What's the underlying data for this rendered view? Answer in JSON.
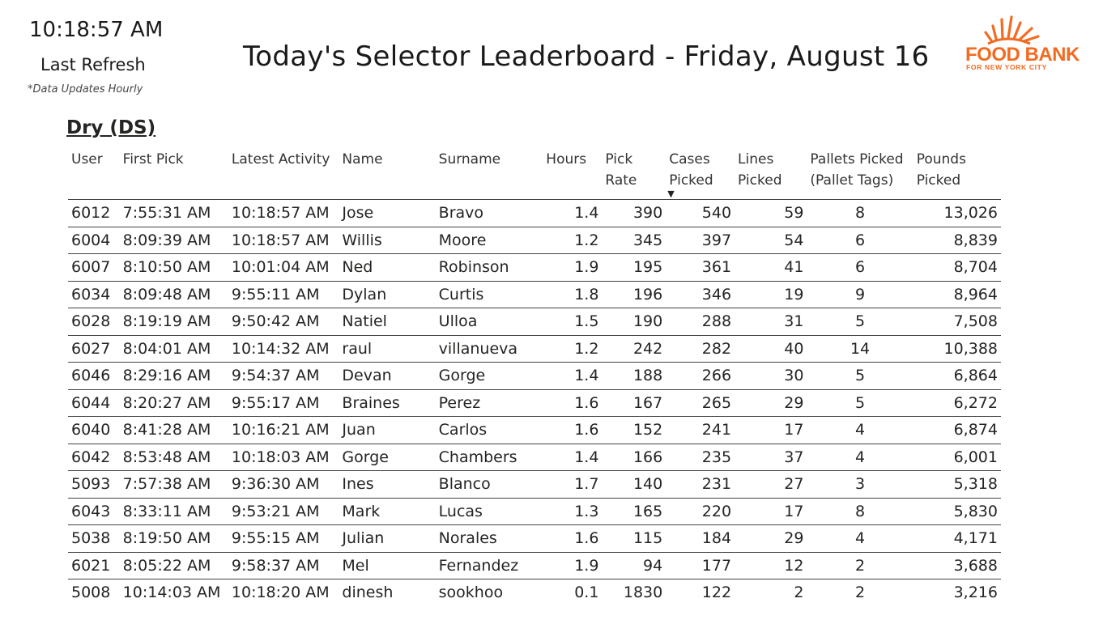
{
  "refresh": {
    "time": "10:18:57 AM",
    "label": "Last Refresh",
    "note": "*Data Updates Hourly"
  },
  "title": "Today's Selector Leaderboard - Friday, August 16",
  "logo": {
    "name": "FOOD BANK",
    "subtitle": "FOR NEW YORK CITY",
    "color": "#f26b21"
  },
  "section": {
    "title": "Dry (DS)"
  },
  "table": {
    "headers": {
      "user": "User",
      "first_pick": "First Pick",
      "latest_activity": "Latest Activity",
      "name": "Name",
      "surname": "Surname",
      "hours": "Hours",
      "pick_rate_1": "Pick",
      "pick_rate_2": "Rate",
      "cases_1": "Cases",
      "cases_2": "Picked",
      "lines_1": "Lines",
      "lines_2": "Picked",
      "pallets_1": "Pallets Picked",
      "pallets_2": "(Pallet Tags)",
      "pounds_1": "Pounds",
      "pounds_2": "Picked"
    },
    "sort_icon": "sort-descending-icon",
    "rows": [
      {
        "user": "6012",
        "first_pick": "7:55:31 AM",
        "latest_activity": "10:18:57 AM",
        "name": "Jose",
        "surname": "Bravo",
        "hours": "1.4",
        "pick_rate": "390",
        "cases": "540",
        "lines": "59",
        "pallets": "8",
        "pounds": "13,026"
      },
      {
        "user": "6004",
        "first_pick": "8:09:39 AM",
        "latest_activity": "10:18:57 AM",
        "name": "Willis",
        "surname": "Moore",
        "hours": "1.2",
        "pick_rate": "345",
        "cases": "397",
        "lines": "54",
        "pallets": "6",
        "pounds": "8,839"
      },
      {
        "user": "6007",
        "first_pick": "8:10:50 AM",
        "latest_activity": "10:01:04 AM",
        "name": "Ned",
        "surname": "Robinson",
        "hours": "1.9",
        "pick_rate": "195",
        "cases": "361",
        "lines": "41",
        "pallets": "6",
        "pounds": "8,704"
      },
      {
        "user": "6034",
        "first_pick": "8:09:48 AM",
        "latest_activity": "9:55:11 AM",
        "name": "Dylan",
        "surname": "Curtis",
        "hours": "1.8",
        "pick_rate": "196",
        "cases": "346",
        "lines": "19",
        "pallets": "9",
        "pounds": "8,964"
      },
      {
        "user": "6028",
        "first_pick": "8:19:19 AM",
        "latest_activity": "9:50:42 AM",
        "name": "Natiel",
        "surname": "Ulloa",
        "hours": "1.5",
        "pick_rate": "190",
        "cases": "288",
        "lines": "31",
        "pallets": "5",
        "pounds": "7,508"
      },
      {
        "user": "6027",
        "first_pick": "8:04:01 AM",
        "latest_activity": "10:14:32 AM",
        "name": "raul",
        "surname": "villanueva",
        "hours": "1.2",
        "pick_rate": "242",
        "cases": "282",
        "lines": "40",
        "pallets": "14",
        "pounds": "10,388"
      },
      {
        "user": "6046",
        "first_pick": "8:29:16 AM",
        "latest_activity": "9:54:37 AM",
        "name": "Devan",
        "surname": "Gorge",
        "hours": "1.4",
        "pick_rate": "188",
        "cases": "266",
        "lines": "30",
        "pallets": "5",
        "pounds": "6,864"
      },
      {
        "user": "6044",
        "first_pick": "8:20:27 AM",
        "latest_activity": "9:55:17 AM",
        "name": "Braines",
        "surname": "Perez",
        "hours": "1.6",
        "pick_rate": "167",
        "cases": "265",
        "lines": "29",
        "pallets": "5",
        "pounds": "6,272"
      },
      {
        "user": "6040",
        "first_pick": "8:41:28 AM",
        "latest_activity": "10:16:21 AM",
        "name": "Juan",
        "surname": "Carlos",
        "hours": "1.6",
        "pick_rate": "152",
        "cases": "241",
        "lines": "17",
        "pallets": "4",
        "pounds": "6,874"
      },
      {
        "user": "6042",
        "first_pick": "8:53:48 AM",
        "latest_activity": "10:18:03 AM",
        "name": "Gorge",
        "surname": "Chambers",
        "hours": "1.4",
        "pick_rate": "166",
        "cases": "235",
        "lines": "37",
        "pallets": "4",
        "pounds": "6,001"
      },
      {
        "user": "5093",
        "first_pick": "7:57:38 AM",
        "latest_activity": "9:36:30 AM",
        "name": "Ines",
        "surname": "Blanco",
        "hours": "1.7",
        "pick_rate": "140",
        "cases": "231",
        "lines": "27",
        "pallets": "3",
        "pounds": "5,318"
      },
      {
        "user": "6043",
        "first_pick": "8:33:11 AM",
        "latest_activity": "9:53:21 AM",
        "name": "Mark",
        "surname": "Lucas",
        "hours": "1.3",
        "pick_rate": "165",
        "cases": "220",
        "lines": "17",
        "pallets": "8",
        "pounds": "5,830"
      },
      {
        "user": "5038",
        "first_pick": "8:19:50 AM",
        "latest_activity": "9:55:15 AM",
        "name": "Julian",
        "surname": "Norales",
        "hours": "1.6",
        "pick_rate": "115",
        "cases": "184",
        "lines": "29",
        "pallets": "4",
        "pounds": "4,171"
      },
      {
        "user": "6021",
        "first_pick": "8:05:22 AM",
        "latest_activity": "9:58:37 AM",
        "name": "Mel",
        "surname": "Fernandez",
        "hours": "1.9",
        "pick_rate": "94",
        "cases": "177",
        "lines": "12",
        "pallets": "2",
        "pounds": "3,688"
      },
      {
        "user": "5008",
        "first_pick": "10:14:03 AM",
        "latest_activity": "10:18:20 AM",
        "name": "dinesh",
        "surname": "sookhoo",
        "hours": "0.1",
        "pick_rate": "1830",
        "cases": "122",
        "lines": "2",
        "pallets": "2",
        "pounds": "3,216"
      }
    ]
  }
}
